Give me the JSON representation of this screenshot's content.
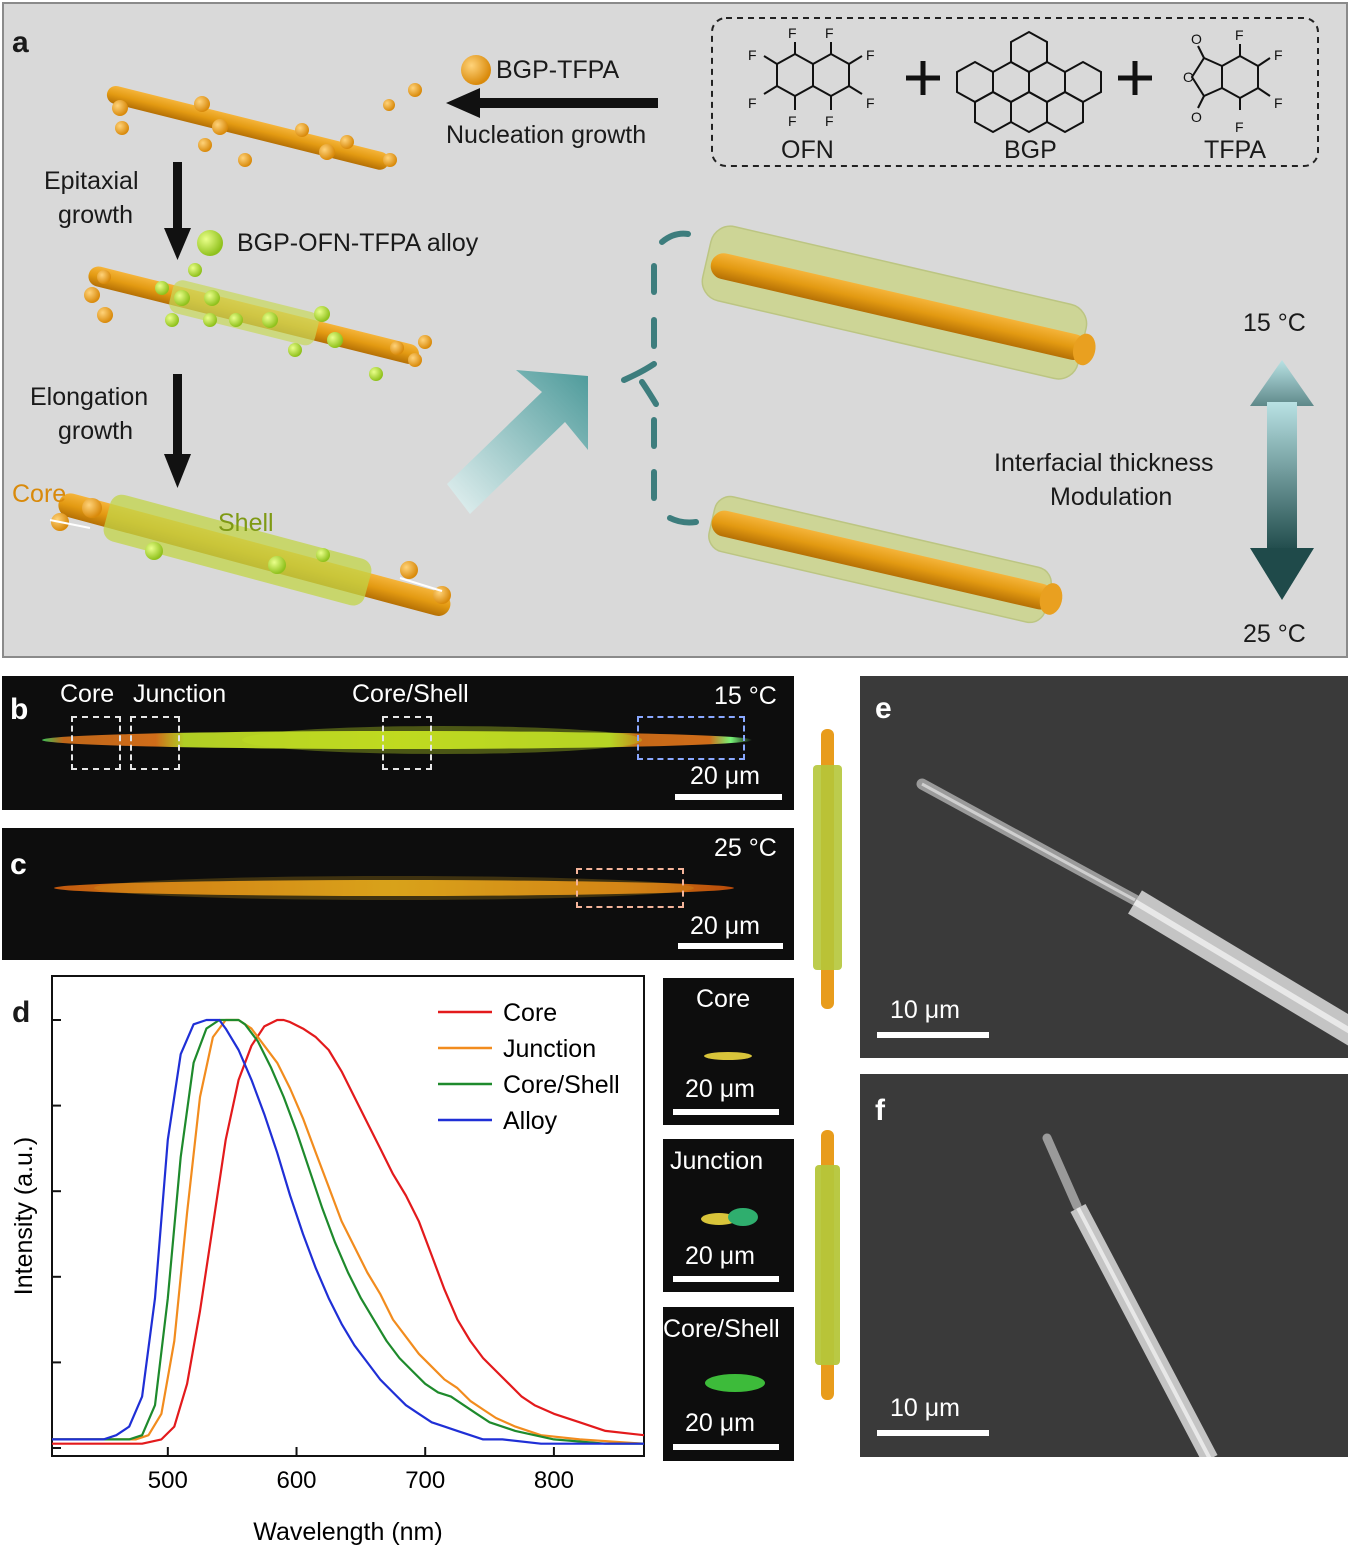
{
  "panel_a": {
    "label": "a",
    "bgp_tfpa": "BGP-TFPA",
    "nucleation": "Nucleation growth",
    "epitaxial_1": "Epitaxial",
    "epitaxial_2": "growth",
    "alloy": "BGP-OFN-TFPA alloy",
    "elongation_1": "Elongation",
    "elongation_2": "growth",
    "core": "Core",
    "shell": "Shell",
    "ofn": "OFN",
    "bgp": "BGP",
    "tfpa": "TFPA",
    "t15": "15 °C",
    "t25": "25 °C",
    "interfacial_1": "Interfacial thickness",
    "interfacial_2": "Modulation",
    "F": "F",
    "O": "O"
  },
  "panel_b": {
    "label": "b",
    "core": "Core",
    "junction": "Junction",
    "coreshell": "Core/Shell",
    "temp": "15 °C",
    "scale": "20 μm"
  },
  "panel_c": {
    "label": "c",
    "temp": "25 °C",
    "scale": "20 μm"
  },
  "insets": [
    {
      "title": "Core",
      "scale": "20 μm"
    },
    {
      "title": "Junction",
      "scale": "20 μm"
    },
    {
      "title": "Core/Shell",
      "scale": "20 μm"
    }
  ],
  "panel_e": {
    "label": "e",
    "scale": "10 μm"
  },
  "panel_f": {
    "label": "f",
    "scale": "10 μm"
  },
  "chart_data": {
    "type": "line",
    "label": "d",
    "xlabel": "Wavelength (nm)",
    "ylabel": "Intensity (a.u.)",
    "xlim": [
      410,
      870
    ],
    "ylim": [
      0,
      1.0
    ],
    "xticks": [
      500,
      600,
      700,
      800
    ],
    "legend_position": "top-right",
    "series": [
      {
        "name": "Core",
        "color": "#e31a1c",
        "x": [
          410,
          460,
          480,
          495,
          505,
          515,
          525,
          535,
          545,
          555,
          565,
          575,
          585,
          590,
          595,
          605,
          615,
          625,
          635,
          645,
          655,
          665,
          675,
          685,
          695,
          705,
          715,
          725,
          735,
          745,
          755,
          765,
          775,
          785,
          800,
          820,
          840,
          870
        ],
        "y": [
          0.01,
          0.01,
          0.01,
          0.02,
          0.05,
          0.15,
          0.32,
          0.52,
          0.72,
          0.86,
          0.94,
          0.985,
          1.0,
          1.0,
          0.995,
          0.98,
          0.96,
          0.93,
          0.88,
          0.82,
          0.76,
          0.7,
          0.64,
          0.59,
          0.53,
          0.45,
          0.37,
          0.3,
          0.25,
          0.21,
          0.18,
          0.15,
          0.12,
          0.1,
          0.08,
          0.06,
          0.04,
          0.03
        ]
      },
      {
        "name": "Junction",
        "color": "#f28c1e",
        "x": [
          410,
          460,
          475,
          485,
          495,
          505,
          515,
          525,
          535,
          545,
          555,
          560,
          565,
          575,
          585,
          595,
          605,
          615,
          625,
          635,
          645,
          655,
          665,
          675,
          685,
          695,
          705,
          715,
          725,
          735,
          745,
          755,
          770,
          790,
          820,
          870
        ],
        "y": [
          0.02,
          0.02,
          0.02,
          0.03,
          0.08,
          0.25,
          0.55,
          0.82,
          0.96,
          1.0,
          1.0,
          0.99,
          0.98,
          0.94,
          0.9,
          0.84,
          0.77,
          0.69,
          0.61,
          0.53,
          0.47,
          0.41,
          0.36,
          0.3,
          0.26,
          0.22,
          0.19,
          0.16,
          0.14,
          0.11,
          0.09,
          0.07,
          0.05,
          0.03,
          0.02,
          0.01
        ]
      },
      {
        "name": "Core/Shell",
        "color": "#1e8a2c",
        "x": [
          410,
          460,
          470,
          480,
          490,
          500,
          510,
          520,
          530,
          540,
          550,
          555,
          560,
          570,
          580,
          590,
          600,
          610,
          620,
          630,
          640,
          650,
          660,
          670,
          680,
          690,
          700,
          710,
          720,
          730,
          740,
          750,
          770,
          800,
          840,
          870
        ],
        "y": [
          0.02,
          0.02,
          0.02,
          0.03,
          0.1,
          0.35,
          0.68,
          0.9,
          0.98,
          1.0,
          1.0,
          1.0,
          0.99,
          0.95,
          0.89,
          0.82,
          0.74,
          0.65,
          0.56,
          0.48,
          0.41,
          0.35,
          0.3,
          0.25,
          0.21,
          0.18,
          0.15,
          0.13,
          0.12,
          0.1,
          0.08,
          0.06,
          0.04,
          0.02,
          0.01,
          0.01
        ]
      },
      {
        "name": "Alloy",
        "color": "#1f2fd6",
        "x": [
          410,
          450,
          460,
          470,
          480,
          490,
          500,
          510,
          520,
          530,
          535,
          540,
          545,
          555,
          565,
          575,
          585,
          595,
          605,
          615,
          625,
          635,
          645,
          655,
          665,
          675,
          685,
          695,
          705,
          715,
          725,
          735,
          745,
          760,
          790,
          830,
          870
        ],
        "y": [
          0.02,
          0.02,
          0.03,
          0.05,
          0.12,
          0.35,
          0.72,
          0.92,
          0.99,
          1.0,
          1.0,
          1.0,
          0.98,
          0.93,
          0.86,
          0.78,
          0.69,
          0.59,
          0.5,
          0.42,
          0.35,
          0.29,
          0.24,
          0.2,
          0.16,
          0.13,
          0.1,
          0.08,
          0.06,
          0.05,
          0.04,
          0.03,
          0.02,
          0.02,
          0.01,
          0.01,
          0.01
        ]
      }
    ]
  }
}
